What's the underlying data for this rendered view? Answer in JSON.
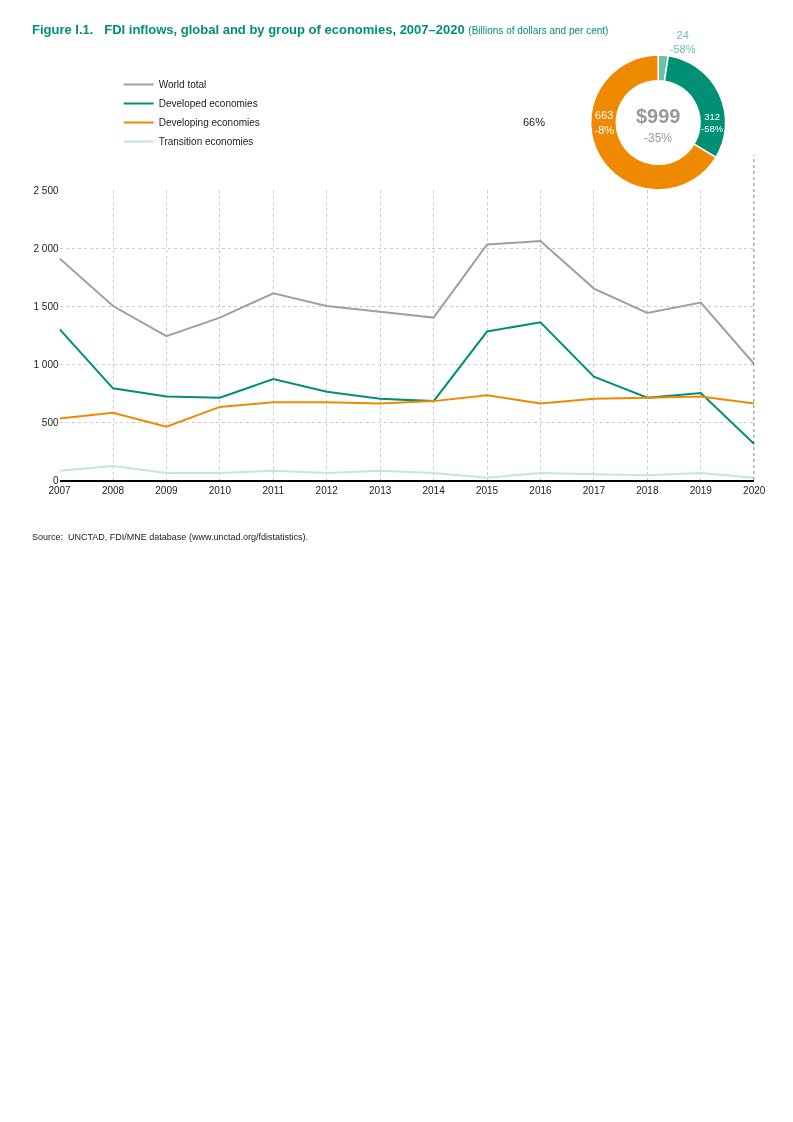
{
  "chart_data": [
    {
      "type": "line",
      "title": "Figure I.1.   FDI inflows, global and by group of economies, 2007–2020",
      "subtitle": "(Billions of dollars and per cent)",
      "x": [
        2007,
        2008,
        2009,
        2010,
        2011,
        2012,
        2013,
        2014,
        2015,
        2016,
        2017,
        2018,
        2019,
        2020
      ],
      "series": [
        {
          "name": "World total",
          "color": "#a0a0a0",
          "values": [
            1910,
            1500,
            1240,
            1400,
            1610,
            1500,
            1450,
            1400,
            2030,
            2060,
            1650,
            1440,
            1530,
            1000
          ]
        },
        {
          "name": "Developed economies",
          "color": "#009174",
          "values": [
            1300,
            790,
            720,
            710,
            870,
            760,
            700,
            680,
            1280,
            1360,
            890,
            710,
            750,
            310
          ]
        },
        {
          "name": "Developing economies",
          "color": "#ef8a00",
          "values": [
            530,
            580,
            460,
            630,
            670,
            670,
            660,
            680,
            730,
            660,
            700,
            710,
            720,
            660
          ]
        },
        {
          "name": "Transition economies",
          "color": "#c4e6dc",
          "values": [
            80,
            120,
            60,
            60,
            80,
            60,
            80,
            60,
            20,
            60,
            50,
            40,
            60,
            20
          ]
        }
      ],
      "xlim": [
        2007,
        2020
      ],
      "xticks": [
        2007,
        2008,
        2009,
        2010,
        2011,
        2012,
        2013,
        2014,
        2015,
        2016,
        2017,
        2018,
        2019,
        2020
      ],
      "ylim": [
        0,
        2500
      ],
      "yticks": [
        0,
        {
          "value": 500,
          "label": "500"
        },
        {
          "value": 1000,
          "label": "1 000"
        },
        {
          "value": 1500,
          "label": "1 500"
        },
        {
          "value": 2000,
          "label": "2 000"
        },
        {
          "value": 2500,
          "label": "2 500"
        }
      ],
      "grid": true,
      "legend": "top left",
      "marker": "none",
      "line_style": "solid",
      "ref_lines": [
        {
          "axis": "x",
          "value": 2020,
          "color": "#222222",
          "line_style": "dotted"
        }
      ],
      "annotations": [
        "Source:  UNCTAD, FDI/MNE database (www.unctad.org/fdistatistics)."
      ]
    },
    {
      "type": "donut",
      "categories": [
        null,
        null,
        null
      ],
      "values": [
        24,
        312,
        663
      ],
      "colors": [
        "#6cc3ac",
        "#009174",
        "#ef8a00"
      ],
      "value_labels": [
        "24\n-58%",
        "312\n-58%",
        "663\n-8%"
      ],
      "annotations": [
        "$999",
        "-35%",
        "66%"
      ]
    }
  ]
}
